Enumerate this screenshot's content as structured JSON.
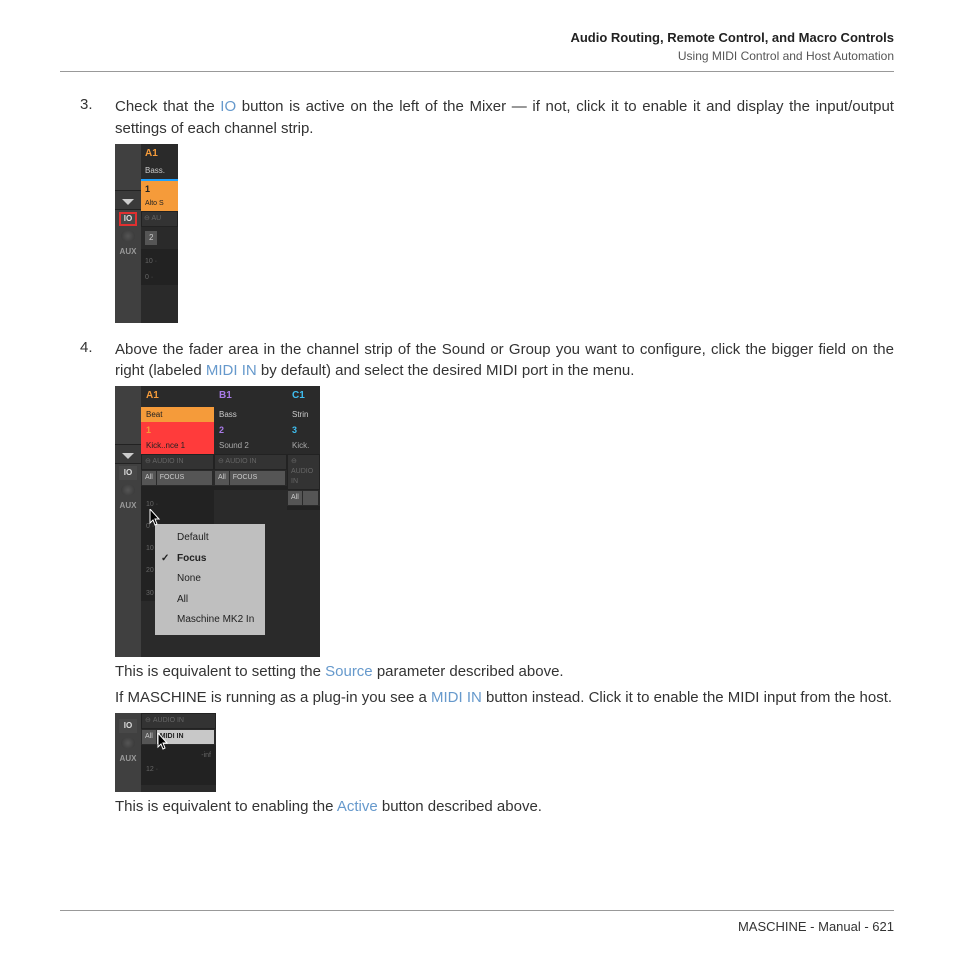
{
  "header": {
    "title": "Audio Routing, Remote Control, and Macro Controls",
    "subtitle": "Using MIDI Control and Host Automation"
  },
  "steps": {
    "s3": {
      "num": "3.",
      "text_a": "Check that the ",
      "ref_io": "IO",
      "text_b": " button is active on the left of the Mixer — if not, click it to enable it and display the input/output settings of each channel strip."
    },
    "s4": {
      "num": "4.",
      "text_a": "Above the fader area in the channel strip of the Sound or Group you want to configure, click the bigger field on the right (labeled ",
      "ref_midiin": "MIDI IN",
      "text_b": " by default) and select the desired MIDI port in the menu.",
      "after1_a": "This is equivalent to setting the ",
      "ref_source": "Source",
      "after1_b": " parameter described above.",
      "after2_a": "If MASCHINE is running as a plug-in you see a ",
      "ref_midiin2": "MIDI IN",
      "after2_b": " button instead. Click it to enable the MIDI input from the host.",
      "after3_a": "This is equivalent to enabling the ",
      "ref_active": "Active",
      "after3_b": " button described above."
    }
  },
  "shot1": {
    "a1": "A1",
    "bass": "Bass.",
    "one": "1",
    "alto": "Alto S",
    "io": "IO",
    "aud": "AU",
    "two": "2",
    "aux": "AUX",
    "t10": "10 ·",
    "t0": "0 ·"
  },
  "shot2": {
    "io": "IO",
    "aux": "AUX",
    "cols": [
      {
        "h": "A1",
        "hc": "s2-h-a",
        "sub": "Beat",
        "subsel": true,
        "num": "1",
        "numc": "s2-num1",
        "name": "Kick..nce 1",
        "namec": "s2-name1",
        "b1": "All",
        "b2": "FOCUS"
      },
      {
        "h": "B1",
        "hc": "s2-h-b",
        "sub": "Bass",
        "subsel": false,
        "num": "2",
        "numc": "s2-num2",
        "name": "Sound 2",
        "namec": "s2-name",
        "b1": "All",
        "b2": "FOCUS"
      },
      {
        "h": "C1",
        "hc": "s2-h-c",
        "sub": "Strin",
        "subsel": false,
        "num": "3",
        "numc": "s2-num3",
        "name": "Kick.",
        "namec": "s2-name",
        "b1": "All",
        "b2": ""
      }
    ],
    "audio": "AUDIO IN",
    "menu": [
      "Default",
      "Focus",
      "None",
      "All",
      "Maschine MK2 In"
    ],
    "menu_checked": 1,
    "ticks": [
      "10 ·",
      "0 ·",
      "10 ·",
      "20 ·",
      "30 ·"
    ]
  },
  "shot3": {
    "io": "IO",
    "aux": "AUX",
    "audio": "AUDIO IN",
    "all": "All",
    "midiin": "MIDI IN",
    "inf": "-inf",
    "t12": "12 ·"
  },
  "footer": {
    "text": "MASCHINE - Manual - 621"
  }
}
